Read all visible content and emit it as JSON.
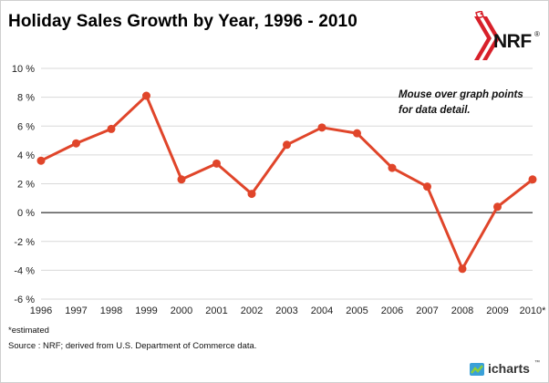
{
  "chart_data": {
    "type": "line",
    "title": "Holiday Sales Growth by Year, 1996 - 2010",
    "categories": [
      "1996",
      "1997",
      "1998",
      "1999",
      "2000",
      "2001",
      "2002",
      "2003",
      "2004",
      "2005",
      "2006",
      "2007",
      "2008",
      "2009",
      "2010*"
    ],
    "series": [
      {
        "values": [
          3.6,
          4.8,
          5.8,
          8.1,
          2.3,
          3.4,
          1.3,
          4.7,
          5.9,
          5.5,
          3.1,
          1.8,
          -3.9,
          0.4,
          2.3
        ]
      }
    ],
    "y_ticks": [
      "10 %",
      "8 %",
      "6 %",
      "4 %",
      "2 %",
      "0 %",
      "-2 %",
      "-4 %",
      "-6 %"
    ],
    "ylim": [
      -6,
      10
    ],
    "grid": true,
    "line_color": "#e0452a",
    "annotation": "Mouse over graph points for data detail.",
    "footnote": "*estimated",
    "source": "Source : NRF; derived from U.S. Department of Commerce data."
  },
  "logo": {
    "text": "NRF",
    "mark": "®"
  },
  "brand": {
    "text": "icharts",
    "mark": "™"
  }
}
